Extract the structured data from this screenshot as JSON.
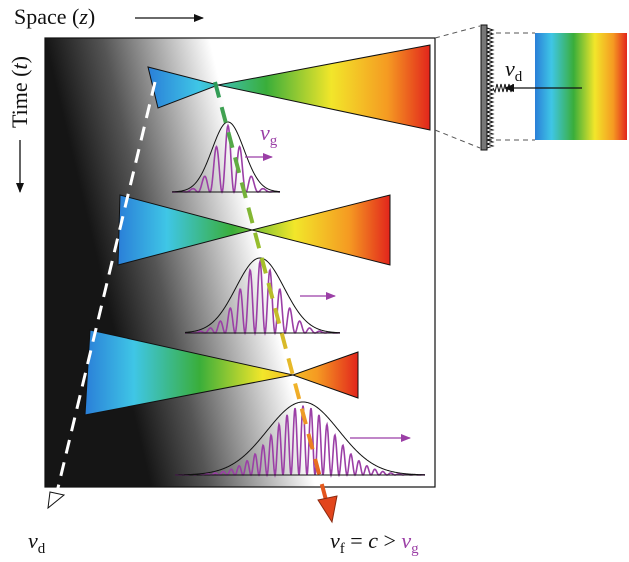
{
  "labels": {
    "space": {
      "text": "Space (",
      "variable": "z",
      "close": ")"
    },
    "time": {
      "text": "Time (",
      "variable": "t",
      "close": ")"
    },
    "v_d_inset": {
      "symbol": "v",
      "subscript": "d"
    },
    "v_g": {
      "symbol": "v",
      "subscript": "g"
    },
    "v_d_bottom": {
      "symbol": "v",
      "subscript": "d"
    },
    "v_f": {
      "symbol": "v",
      "subscript": "f",
      "relation": " = ",
      "speed": "c",
      "comparison": " > ",
      "group_symbol": "v",
      "group_subscript": "g"
    }
  }
}
